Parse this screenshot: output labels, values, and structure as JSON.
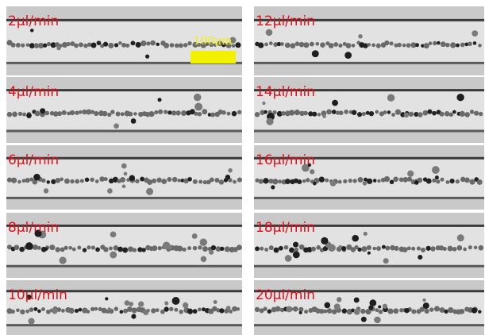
{
  "panels": [
    {
      "label": "2μl/min"
    },
    {
      "label": "12μl/min"
    },
    {
      "label": "4μl/min"
    },
    {
      "label": "14μl/min"
    },
    {
      "label": "6μl/min"
    },
    {
      "label": "16μl/min"
    },
    {
      "label": "8μl/min"
    },
    {
      "label": "18μl/min"
    },
    {
      "label": "10μl/min"
    },
    {
      "label": "20μl/min"
    }
  ],
  "scale_bar": {
    "label": "100μm"
  }
}
